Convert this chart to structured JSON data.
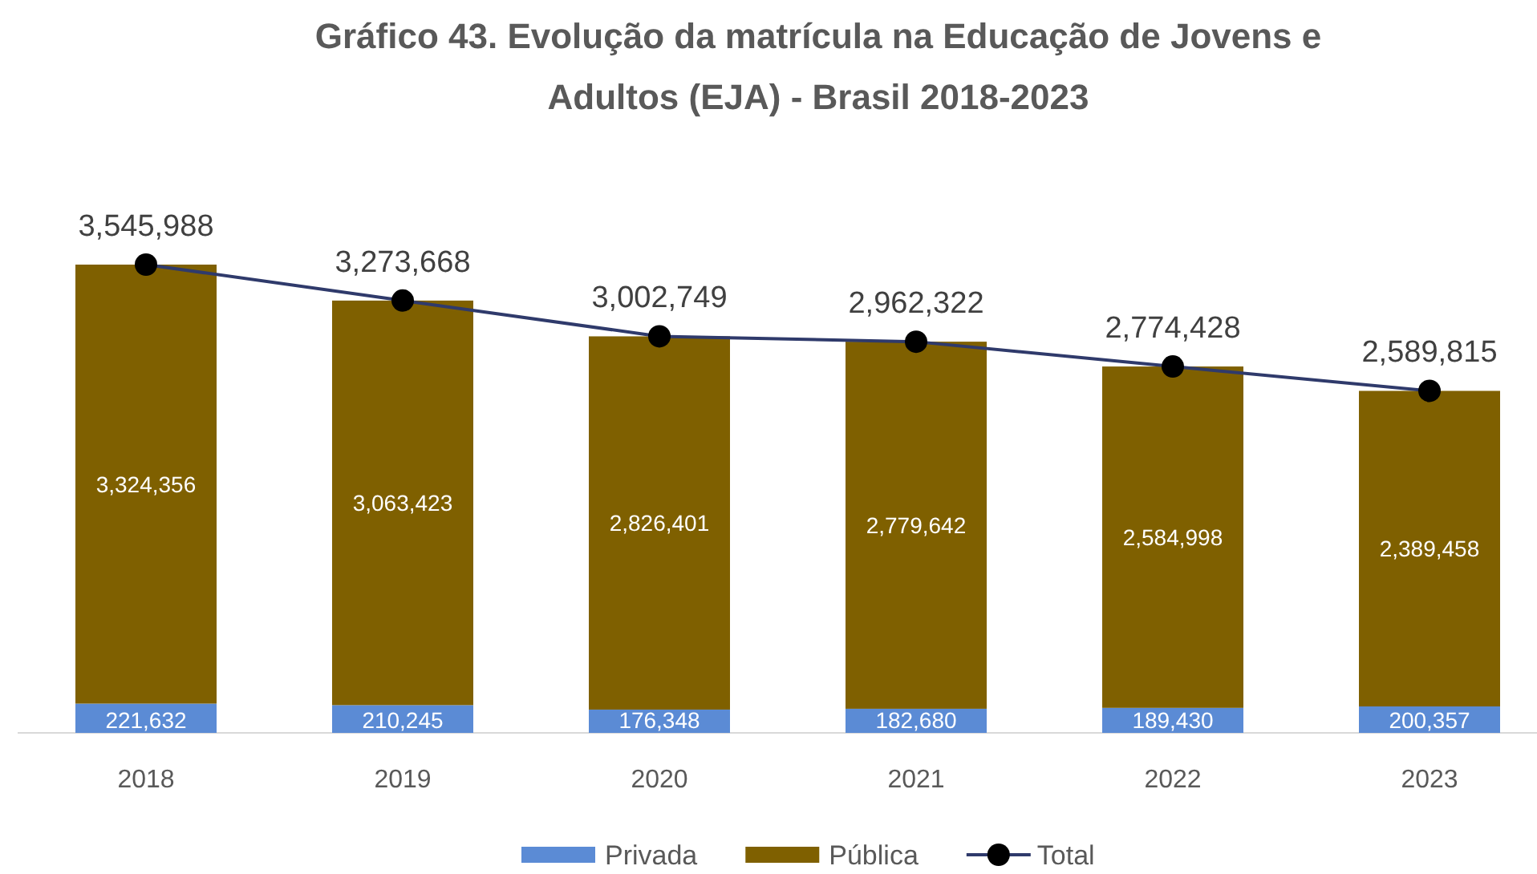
{
  "chart_data": {
    "type": "bar",
    "title": "Gráfico 43. Evolução da matrícula na Educação de Jovens e Adultos (EJA) - Brasil 2018-2023",
    "categories": [
      "2018",
      "2019",
      "2020",
      "2021",
      "2022",
      "2023"
    ],
    "stacked": true,
    "legend": "bottom",
    "marker": "circle",
    "series": [
      {
        "name": "Privada",
        "color": "#5b8bd5",
        "values": [
          221632,
          210245,
          176348,
          182680,
          189430,
          200357
        ],
        "value_labels": [
          "221,632",
          "210,245",
          "176,348",
          "182,680",
          "189,430",
          "200,357"
        ]
      },
      {
        "name": "Pública",
        "color": "#7f6000",
        "values": [
          3324356,
          3063423,
          2826401,
          2779642,
          2584998,
          2389458
        ],
        "value_labels": [
          "3,324,356",
          "3,063,423",
          "2,826,401",
          "2,779,642",
          "2,584,998",
          "2,389,458"
        ]
      },
      {
        "name": "Total",
        "type": "line",
        "color": "#2f3a6b",
        "values": [
          3545988,
          3273668,
          3002749,
          2962322,
          2774428,
          2589815
        ],
        "value_labels": [
          "3,545,988",
          "3,273,668",
          "3,002,749",
          "2,962,322",
          "2,774,428",
          "2,589,815"
        ]
      }
    ]
  }
}
